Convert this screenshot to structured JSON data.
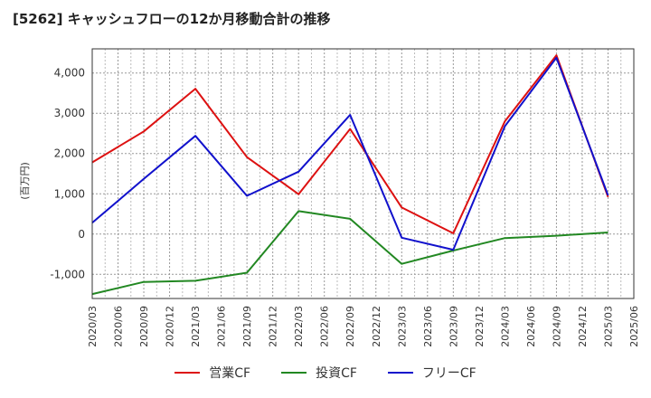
{
  "title": "[5262]  キャッシュフローの12か月移動合計の推移",
  "chart_data": {
    "type": "line",
    "title": "[5262]  キャッシュフローの12か月移動合計の推移",
    "xlabel": "",
    "ylabel": "(百万円)",
    "ylim": [
      -1600,
      4600
    ],
    "yticks": [
      -1000,
      0,
      1000,
      2000,
      3000,
      4000
    ],
    "ytick_labels": [
      "-1,000",
      "0",
      "1,000",
      "2,000",
      "3,000",
      "4,000"
    ],
    "xticks": [
      "2020/03",
      "2020/06",
      "2020/09",
      "2020/12",
      "2021/03",
      "2021/06",
      "2021/09",
      "2021/12",
      "2022/03",
      "2022/06",
      "2022/09",
      "2022/12",
      "2023/03",
      "2023/06",
      "2023/09",
      "2023/12",
      "2024/03",
      "2024/06",
      "2024/09",
      "2024/12",
      "2025/03",
      "2025/06"
    ],
    "grid": true,
    "legend_position": "bottom",
    "series": [
      {
        "name": "営業CF",
        "color": "#dd1111",
        "points": [
          {
            "x": "2020/03",
            "y": 1780
          },
          {
            "x": "2020/09",
            "y": 2550
          },
          {
            "x": "2021/03",
            "y": 3610
          },
          {
            "x": "2021/09",
            "y": 1910
          },
          {
            "x": "2022/03",
            "y": 990
          },
          {
            "x": "2022/09",
            "y": 2610
          },
          {
            "x": "2023/03",
            "y": 660
          },
          {
            "x": "2023/09",
            "y": 20
          },
          {
            "x": "2024/03",
            "y": 2800
          },
          {
            "x": "2024/09",
            "y": 4440
          },
          {
            "x": "2025/03",
            "y": 920
          }
        ]
      },
      {
        "name": "投資CF",
        "color": "#228822",
        "points": [
          {
            "x": "2020/03",
            "y": -1490
          },
          {
            "x": "2020/09",
            "y": -1190
          },
          {
            "x": "2021/03",
            "y": -1160
          },
          {
            "x": "2021/09",
            "y": -960
          },
          {
            "x": "2022/03",
            "y": 570
          },
          {
            "x": "2022/09",
            "y": 380
          },
          {
            "x": "2023/03",
            "y": -740
          },
          {
            "x": "2023/09",
            "y": -410
          },
          {
            "x": "2024/03",
            "y": -100
          },
          {
            "x": "2024/09",
            "y": -40
          },
          {
            "x": "2025/03",
            "y": 40
          }
        ]
      },
      {
        "name": "フリーCF",
        "color": "#1111cc",
        "points": [
          {
            "x": "2020/03",
            "y": 280
          },
          {
            "x": "2020/09",
            "y": 1370
          },
          {
            "x": "2021/03",
            "y": 2440
          },
          {
            "x": "2021/09",
            "y": 950
          },
          {
            "x": "2022/03",
            "y": 1550
          },
          {
            "x": "2022/09",
            "y": 2960
          },
          {
            "x": "2023/03",
            "y": -90
          },
          {
            "x": "2023/09",
            "y": -390
          },
          {
            "x": "2024/03",
            "y": 2680
          },
          {
            "x": "2024/09",
            "y": 4380
          },
          {
            "x": "2025/03",
            "y": 960
          }
        ]
      }
    ]
  }
}
